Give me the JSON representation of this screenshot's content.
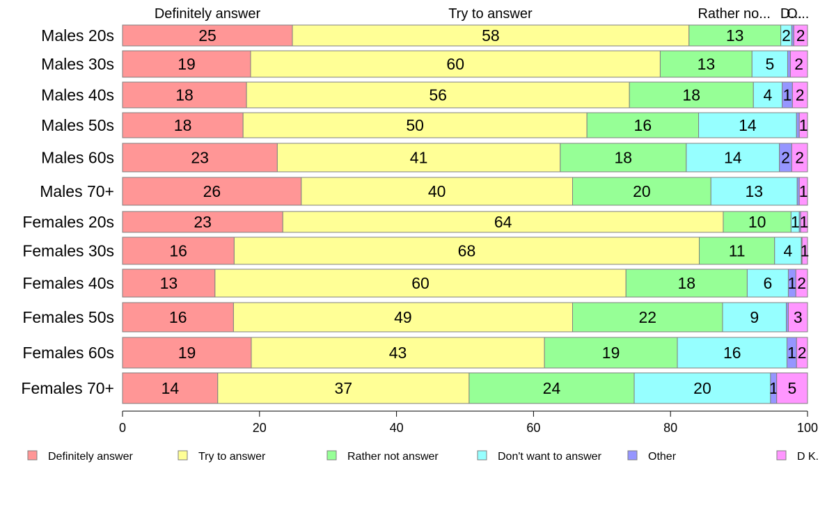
{
  "chart_data": {
    "type": "bar",
    "orientation": "horizontal",
    "stacked": true,
    "categories": [
      "Males 20s",
      "Males 30s",
      "Males 40s",
      "Males 50s",
      "Males 60s",
      "Males 70+",
      "Females 20s",
      "Females 30s",
      "Females 40s",
      "Females 50s",
      "Females 60s",
      "Females 70+"
    ],
    "series": [
      {
        "name": "Definitely answer",
        "color": "#ff9696",
        "values": [
          24.8,
          18.7,
          18.1,
          17.6,
          22.6,
          26.1,
          23.4,
          16.3,
          13.5,
          16.2,
          18.8,
          13.9
        ],
        "labels": [
          "25",
          "19",
          "18",
          "18",
          "23",
          "26",
          "23",
          "16",
          "13",
          "16",
          "19",
          "14"
        ]
      },
      {
        "name": "Try to answer",
        "color": "#ffff96",
        "values": [
          57.9,
          59.8,
          55.9,
          50.2,
          41.3,
          39.6,
          64.3,
          67.9,
          60.0,
          49.5,
          42.8,
          36.7
        ],
        "labels": [
          "58",
          "60",
          "56",
          "50",
          "41",
          "40",
          "64",
          "68",
          "60",
          "49",
          "43",
          "37"
        ]
      },
      {
        "name": "Rather not answer",
        "color": "#96ff96",
        "values": [
          13.4,
          13.4,
          18.1,
          16.3,
          18.4,
          20.2,
          9.9,
          11.0,
          17.7,
          21.9,
          19.4,
          24.1
        ],
        "labels": [
          "13",
          "13",
          "18",
          "16",
          "18",
          "20",
          "10",
          "11",
          "18",
          "22",
          "19",
          "24"
        ]
      },
      {
        "name": "Don't want to answer",
        "color": "#96ffff",
        "values": [
          1.6,
          5.2,
          4.2,
          14.3,
          13.6,
          12.6,
          1.2,
          3.9,
          6.0,
          9.3,
          16.0,
          19.9
        ],
        "labels": [
          "2",
          "5",
          "4",
          "14",
          "14",
          "13",
          "1",
          "4",
          "6",
          "9",
          "16",
          "20"
        ]
      },
      {
        "name": "Other",
        "color": "#9696ff",
        "values": [
          0.3,
          0.4,
          1.5,
          0.4,
          1.8,
          0.3,
          0.2,
          0.1,
          1.1,
          0.3,
          1.4,
          0.9
        ],
        "labels": [
          "",
          "",
          "1",
          "",
          "2",
          "",
          "",
          "",
          "1",
          "",
          "1",
          "1"
        ]
      },
      {
        "name": "D K.",
        "color": "#ff96ff",
        "values": [
          2.0,
          2.5,
          2.2,
          1.2,
          2.3,
          1.2,
          1.0,
          0.8,
          1.7,
          2.8,
          1.6,
          4.5
        ],
        "labels": [
          "2",
          "2",
          "2",
          "1",
          "2",
          "1",
          "1",
          "1",
          "2",
          "3",
          "2",
          "5"
        ]
      }
    ],
    "top_labels": [
      {
        "text": "Definitely answer",
        "at": 12.4
      },
      {
        "text": "Try to answer",
        "at": 53.7
      },
      {
        "text": "Rather no...",
        "at": 89.3
      },
      {
        "text": "D...",
        "at": 97.6
      },
      {
        "text": "O...",
        "at": 98.6
      }
    ],
    "xlim": [
      0,
      100
    ],
    "x_ticks": [
      0,
      20,
      40,
      60,
      80,
      100
    ],
    "tick_labels": [
      "0",
      "20",
      "40",
      "60",
      "80",
      "100"
    ],
    "title": "",
    "xlabel": "",
    "ylabel": "",
    "grid": false,
    "legend_position": "bottom",
    "bar_outline_color": "#7f7f7f",
    "axis_color": "#000000"
  }
}
